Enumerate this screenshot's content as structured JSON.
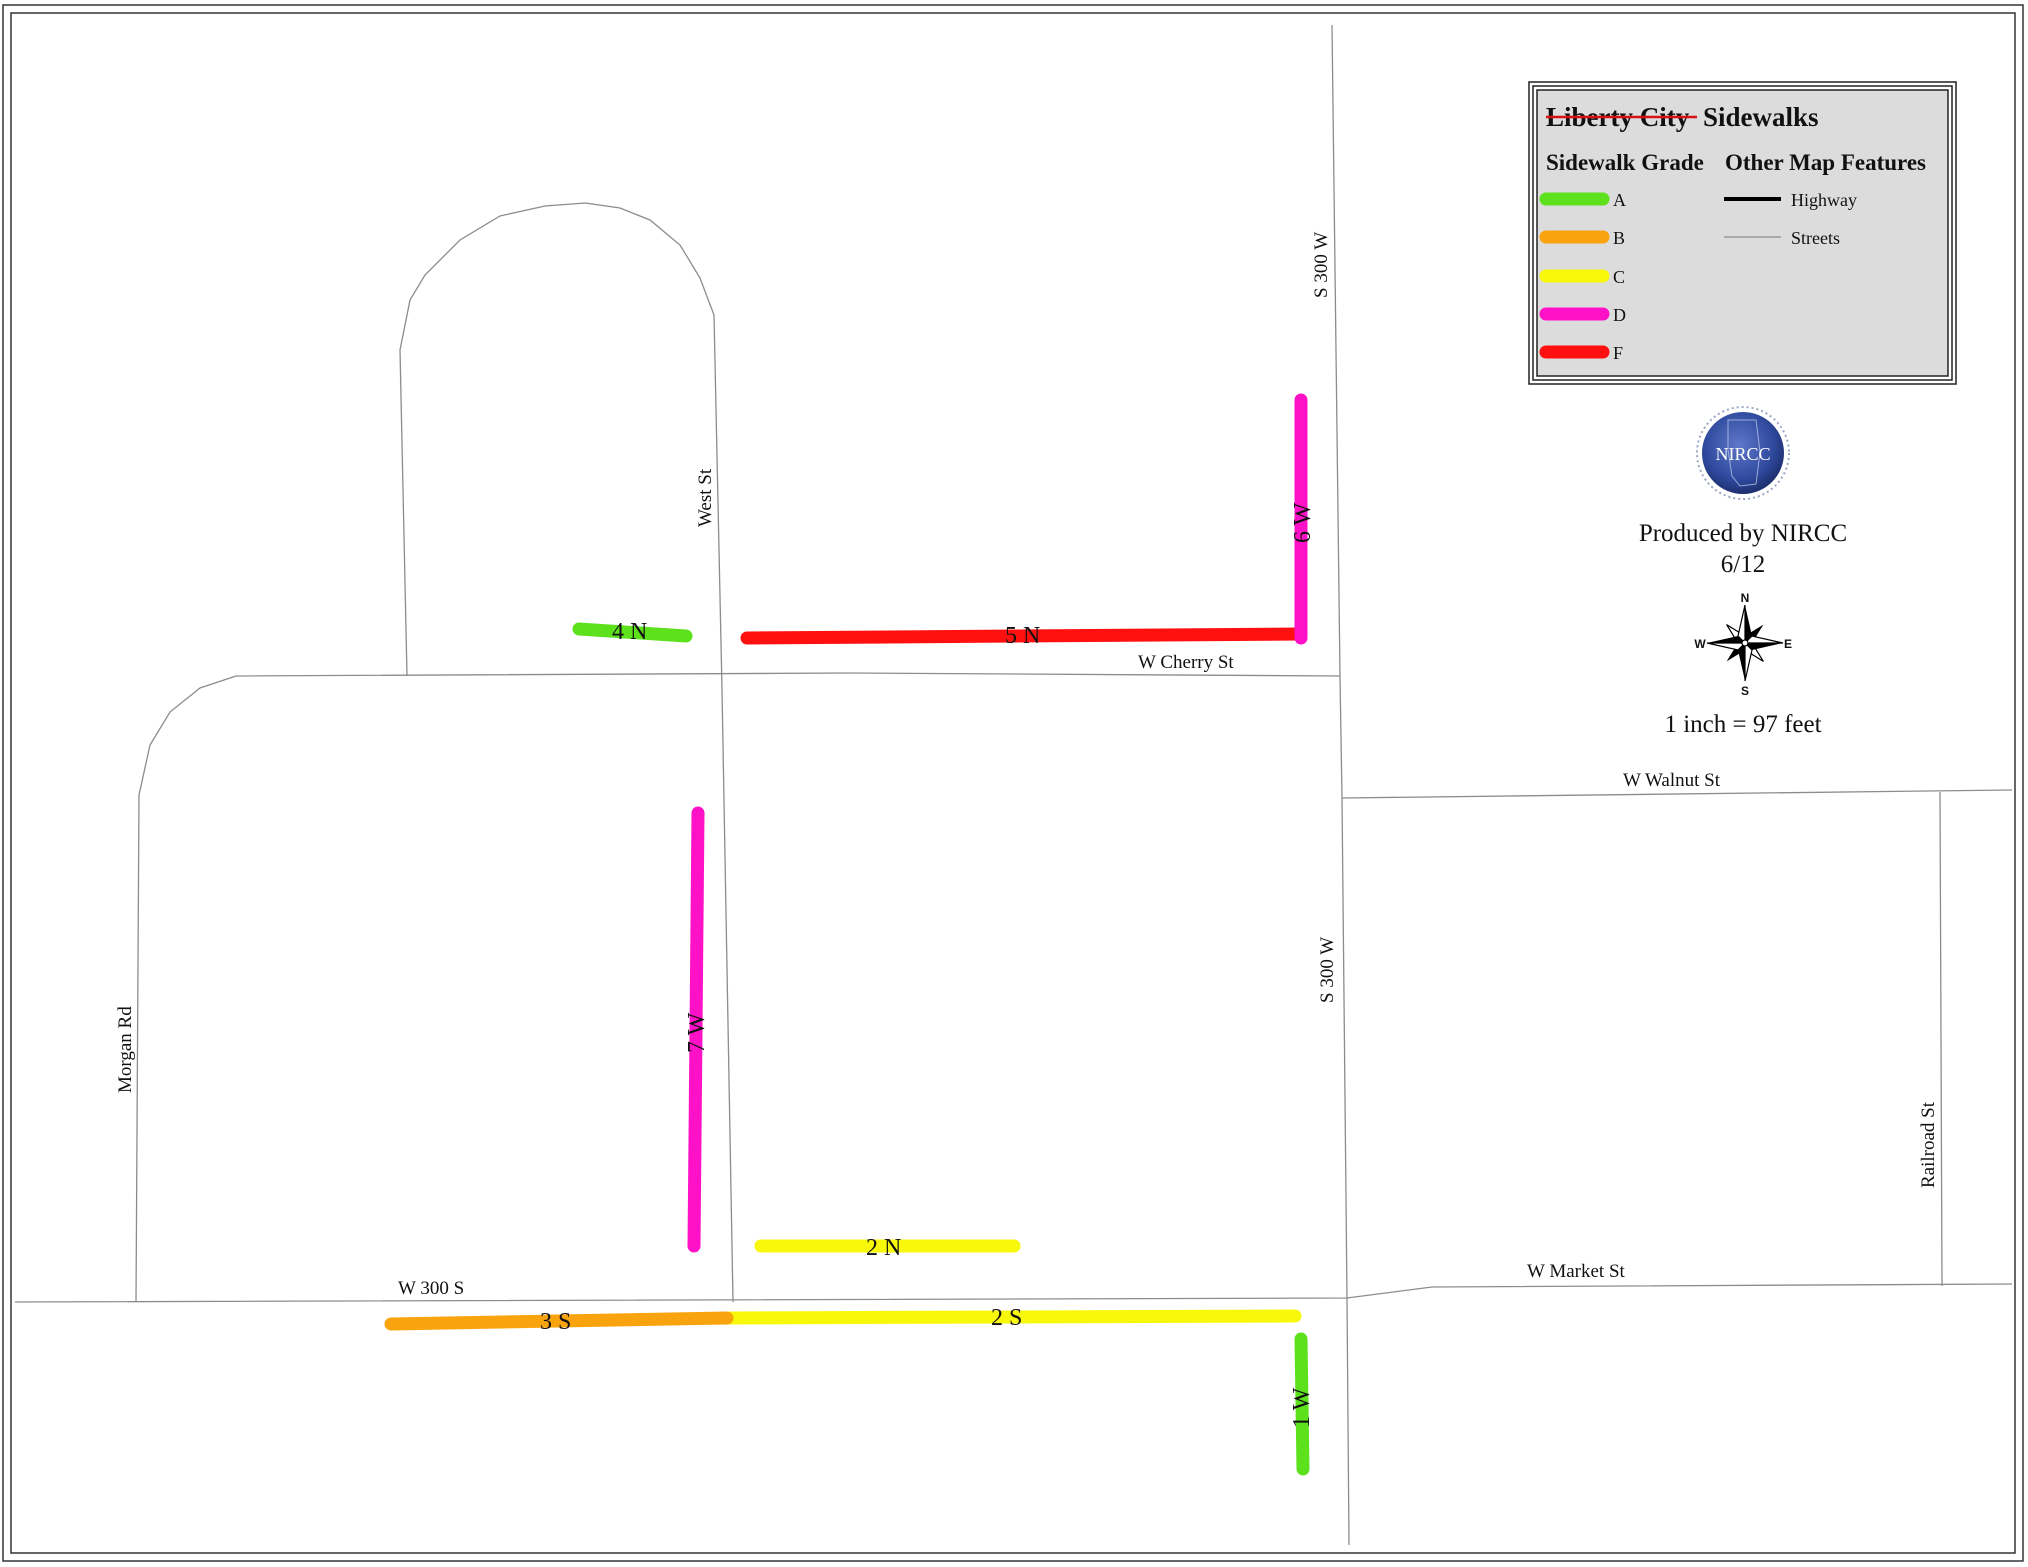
{
  "map": {
    "streets": {
      "morgan_rd": "Morgan Rd",
      "west_st": "West St",
      "s_300_w_north": "S 300 W",
      "s_300_w_south": "S 300 W",
      "w_cherry_st": "W Cherry St",
      "w_walnut_st": "W Walnut St",
      "w_300_s": "W 300 S",
      "w_market_st": "W Market St",
      "railroad_st": "Railroad St"
    },
    "segments": [
      {
        "id": "4n",
        "label": "4 N",
        "grade": "A"
      },
      {
        "id": "5n",
        "label": "5 N",
        "grade": "F"
      },
      {
        "id": "6w",
        "label": "6 W",
        "grade": "D"
      },
      {
        "id": "7w",
        "label": "7 W",
        "grade": "D"
      },
      {
        "id": "2n",
        "label": "2 N",
        "grade": "C"
      },
      {
        "id": "3s",
        "label": "3 S",
        "grade": "B"
      },
      {
        "id": "2s",
        "label": "2 S",
        "grade": "C"
      },
      {
        "id": "1w",
        "label": "1 W",
        "grade": "A"
      }
    ]
  },
  "legend": {
    "title_struck": "Liberty City",
    "title_rest": "Sidewalks",
    "grade_header": "Sidewalk Grade",
    "features_header": "Other Map Features",
    "grades": [
      {
        "label": "A",
        "color": "#5ce11c"
      },
      {
        "label": "B",
        "color": "#f9a40f"
      },
      {
        "label": "C",
        "color": "#f8f80a"
      },
      {
        "label": "D",
        "color": "#ff11c8"
      },
      {
        "label": "F",
        "color": "#ff1010"
      }
    ],
    "features": [
      {
        "label": "Highway",
        "icon": "highway-line"
      },
      {
        "label": "Streets",
        "icon": "street-line"
      }
    ]
  },
  "logo": {
    "text": "NIRCC"
  },
  "credits": {
    "produced_by": "Produced by NIRCC",
    "date": "6/12"
  },
  "compass": {
    "n": "N",
    "s": "S",
    "e": "E",
    "w": "W"
  },
  "scale": {
    "text": "1 inch = 97 feet"
  }
}
